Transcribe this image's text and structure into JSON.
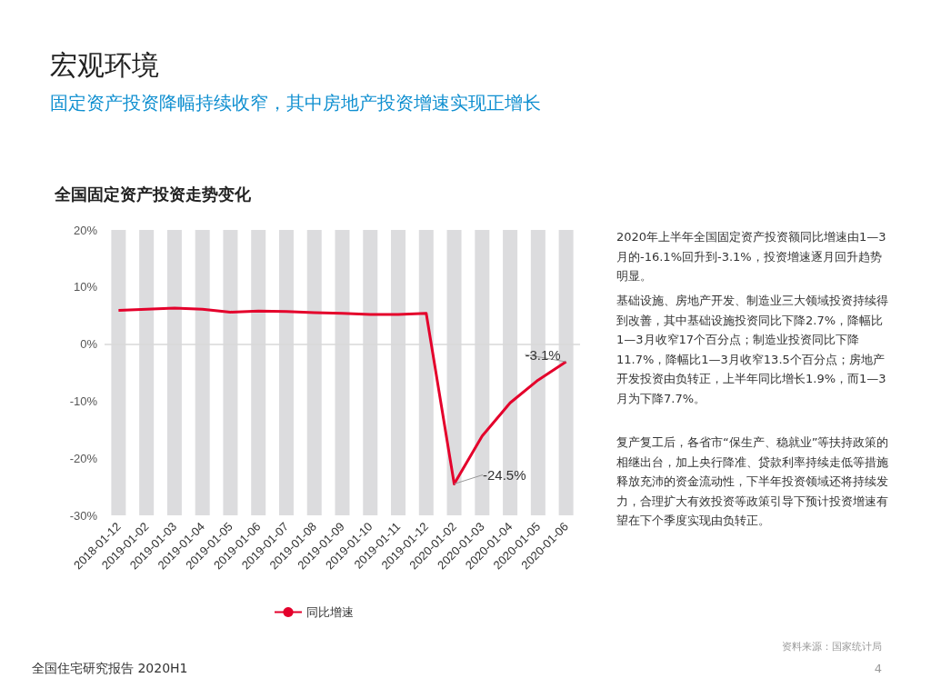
{
  "chart_data": {
    "type": "line",
    "title": "宏观环境",
    "subtitle": "固定资产投资降幅持续收窄，其中房地产投资增速实现正增长",
    "categories": [
      "2018-01-12",
      "2019-01-02",
      "2019-01-03",
      "2019-01-04",
      "2019-01-05",
      "2019-01-06",
      "2019-01-07",
      "2019-01-08",
      "2019-01-09",
      "2019-01-10",
      "2019-01-11",
      "2019-01-12",
      "2020-01-02",
      "2020-01-03",
      "2020-01-04",
      "2020-01-05",
      "2020-01-06"
    ],
    "series": [
      {
        "type": "bar",
        "color": "#dcdcde",
        "base": [
          -30,
          -30,
          -30,
          -30,
          -30,
          -30,
          -30,
          -30,
          -30,
          -30,
          -30,
          -30,
          -30,
          -30,
          -30,
          -30,
          -30
        ],
        "values": [
          50,
          50,
          50,
          50,
          50,
          50,
          50,
          50,
          50,
          50,
          50,
          50,
          50,
          50,
          50,
          50,
          50
        ]
      },
      {
        "name": "同比增速",
        "color": "#e4002b",
        "values": [
          5.9,
          6.1,
          6.3,
          6.1,
          5.6,
          5.8,
          5.7,
          5.5,
          5.4,
          5.2,
          5.2,
          5.4,
          -24.5,
          -16.1,
          -10.3,
          -6.3,
          -3.1
        ],
        "value_labels": [
          null,
          null,
          null,
          null,
          null,
          null,
          null,
          null,
          null,
          null,
          null,
          null,
          "-24.5%",
          null,
          null,
          null,
          "-3.1%"
        ]
      }
    ],
    "ylim": [
      -30,
      20
    ],
    "yticks": [
      {
        "value": -30,
        "label": "-30%"
      },
      {
        "value": -20,
        "label": "-20%"
      },
      {
        "value": -10,
        "label": "-10%"
      },
      {
        "value": 0,
        "label": "0%"
      },
      {
        "value": 10,
        "label": "10%"
      },
      {
        "value": 20,
        "label": "20%"
      }
    ],
    "ref_lines": [
      {
        "axis": "y",
        "value": 0,
        "color": "#d9d9d9"
      }
    ],
    "grid": false,
    "legend": "bottom",
    "marker": "none",
    "line_style": "solid",
    "annotations": [
      "全国固定资产投资走势变化",
      "2020年上半年全国固定资产投资额同比增速由1—3月的-16.1%回升到-3.1%，投资增速逐月回升趋势明显。",
      "基础设施、房地产开发、制造业三大领域投资持续得到改善，其中基础设施投资同比下降2.7%，降幅比1—3月收窄17个百分点；制造业投资同比下降11.7%，降幅比1—3月收窄13.5个百分点；房地产开发投资由负转正，上半年同比增长1.9%，而1—3月为下降7.7%。",
      "复产复工后，各省市“保生产、稳就业”等扶持政策的相继出台，加上央行降准、贷款利率持续走低等措施释放充沛的资金流动性，下半年投资领域还将持续发力，合理扩大有效投资等政策引导下预计投资增速有望在下个季度实现由负转正。",
      "资料来源：国家统计局",
      "全国住宅研究报告 2020H1",
      "4"
    ]
  }
}
